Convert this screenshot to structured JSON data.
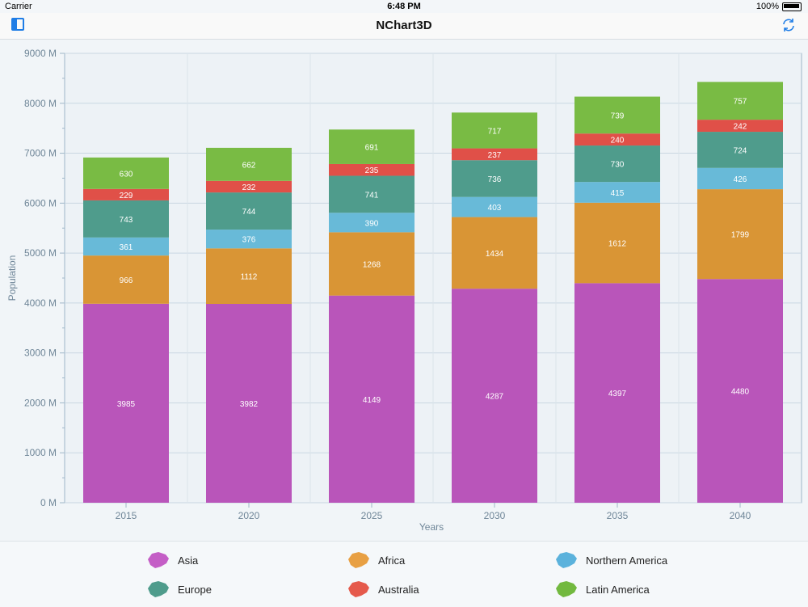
{
  "status": {
    "carrier": "Carrier",
    "time": "6:48 PM",
    "battery": "100%"
  },
  "nav": {
    "title": "NChart3D"
  },
  "chart_data": {
    "type": "bar",
    "stacked": true,
    "categories": [
      "2015",
      "2020",
      "2025",
      "2030",
      "2035",
      "2040"
    ],
    "series": [
      {
        "name": "Asia",
        "color": "#b955ba",
        "values": [
          3985,
          3982,
          4149,
          4287,
          4397,
          4480
        ]
      },
      {
        "name": "Africa",
        "color": "#d99535",
        "values": [
          966,
          1112,
          1268,
          1434,
          1612,
          1799
        ]
      },
      {
        "name": "Northern America",
        "color": "#68bad8",
        "values": [
          361,
          376,
          390,
          403,
          415,
          426
        ]
      },
      {
        "name": "Europe",
        "color": "#4f9c8c",
        "values": [
          743,
          744,
          741,
          736,
          730,
          724
        ]
      },
      {
        "name": "Australia",
        "color": "#e05048",
        "values": [
          229,
          232,
          235,
          237,
          240,
          242
        ]
      },
      {
        "name": "Latin America",
        "color": "#79bb44",
        "values": [
          630,
          662,
          691,
          717,
          739,
          757
        ]
      }
    ],
    "xlabel": "Years",
    "ylabel": "Population",
    "ylim": [
      0,
      9000
    ],
    "yticks": [
      "0 M",
      "1000 M",
      "2000 M",
      "3000 M",
      "4000 M",
      "5000 M",
      "6000 M",
      "7000 M",
      "8000 M",
      "9000 M"
    ],
    "grid": true,
    "legend_position": "bottom"
  },
  "legend": {
    "items": [
      {
        "label": "Asia",
        "icon": "asia-map-icon",
        "color": "#c45ec6"
      },
      {
        "label": "Africa",
        "icon": "africa-map-icon",
        "color": "#e8a043"
      },
      {
        "label": "Northern America",
        "icon": "north-america-map-icon",
        "color": "#5bb2dc"
      },
      {
        "label": "Europe",
        "icon": "europe-map-icon",
        "color": "#4f9c8c"
      },
      {
        "label": "Australia",
        "icon": "australia-map-icon",
        "color": "#e55a4c"
      },
      {
        "label": "Latin America",
        "icon": "latin-america-map-icon",
        "color": "#72b93f"
      }
    ]
  }
}
